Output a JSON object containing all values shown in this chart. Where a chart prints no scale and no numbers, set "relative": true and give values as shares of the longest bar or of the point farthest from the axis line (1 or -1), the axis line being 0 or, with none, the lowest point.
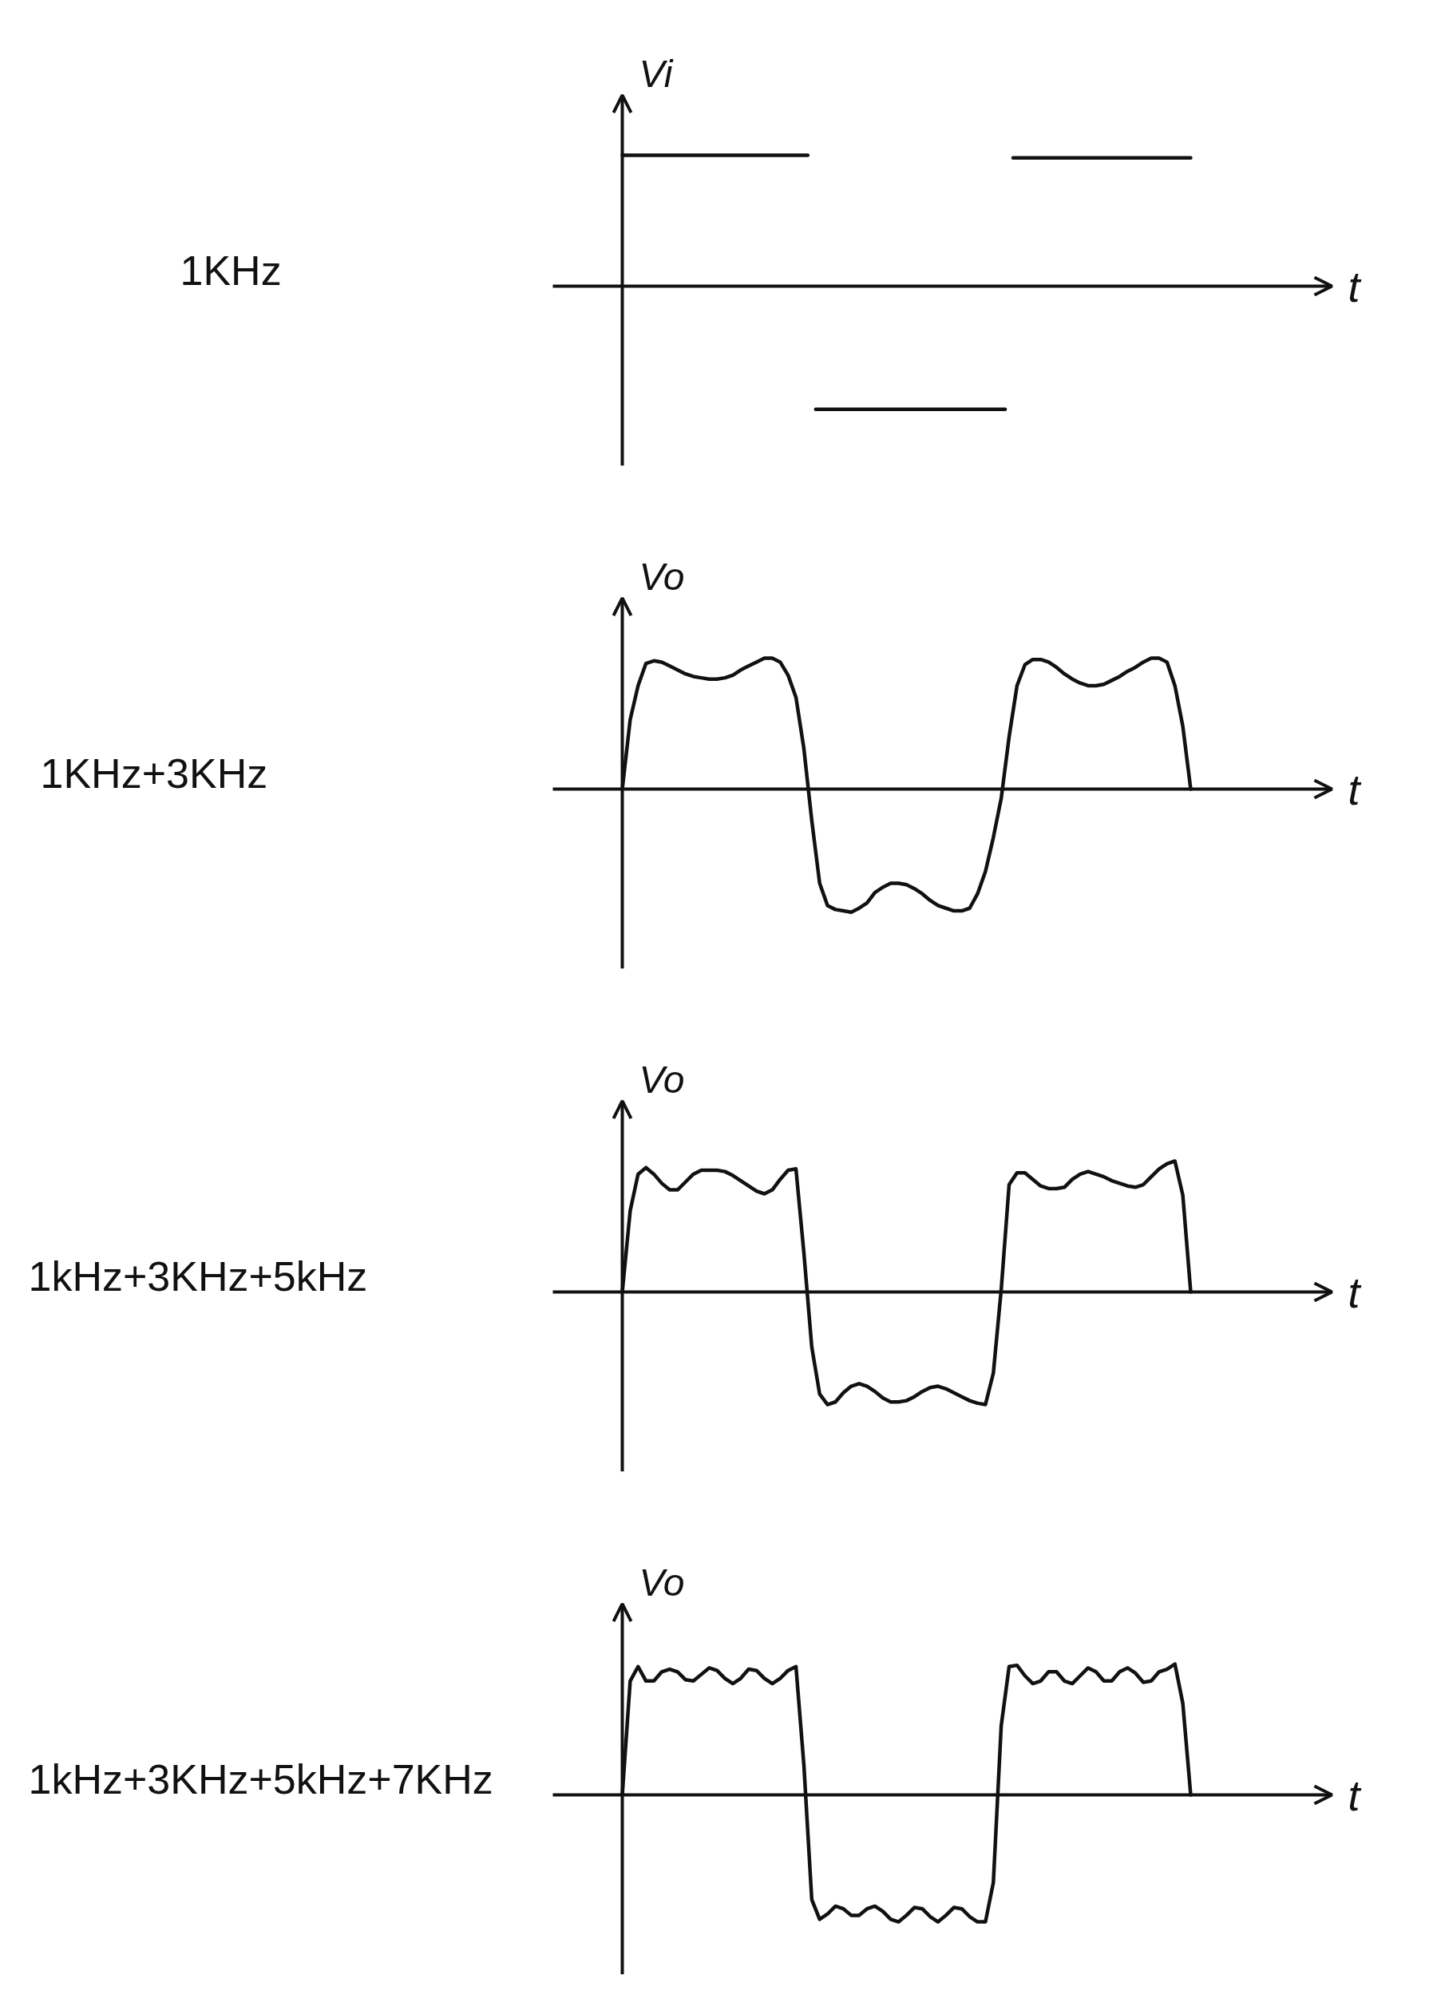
{
  "chart_data": [
    {
      "type": "line",
      "annotations": [
        "1KHz"
      ],
      "xlabel": "t",
      "ylabel": "Vi",
      "relative": true,
      "categories": [
        null,
        null,
        null,
        null,
        null,
        null,
        null,
        null,
        null,
        null,
        null,
        null,
        null,
        null,
        null,
        null,
        null,
        null,
        null,
        null,
        null,
        null,
        null,
        null,
        null,
        null,
        null,
        null,
        null,
        null,
        null,
        null,
        null,
        null,
        null,
        null,
        null,
        null,
        null,
        null,
        null,
        null,
        null,
        null,
        null,
        null,
        null,
        null,
        null,
        null,
        null,
        null,
        null,
        null,
        null,
        null,
        null,
        null,
        null,
        null,
        null,
        null,
        null,
        null,
        null,
        null,
        null,
        null,
        null,
        null,
        null,
        null,
        null,
        null,
        null,
        null,
        null,
        null,
        null,
        null,
        null,
        null,
        null,
        null,
        null,
        null,
        null,
        null,
        null,
        null,
        null,
        null,
        null,
        null,
        null,
        null,
        null,
        null,
        null,
        null,
        null,
        null,
        null,
        null,
        null,
        null,
        null,
        null,
        null,
        null,
        null,
        null,
        null,
        null,
        null,
        null,
        null,
        null,
        null,
        null,
        null,
        null,
        null,
        null,
        null,
        null,
        null,
        null,
        null,
        null,
        null,
        null,
        null,
        null,
        null,
        null,
        null,
        null,
        null,
        null,
        null,
        null,
        null,
        null,
        null
      ],
      "series": [
        {
          "color": "#111111",
          "values": [
            1,
            1,
            1,
            1,
            1,
            1,
            1,
            1,
            1,
            1,
            1,
            1,
            1,
            1,
            1,
            1,
            1,
            1,
            1,
            1,
            1,
            1,
            1,
            1,
            1,
            1,
            1,
            1,
            1,
            1,
            1,
            1,
            1,
            1,
            1,
            1,
            1,
            1,
            1,
            1,
            1,
            1,
            1,
            1,
            1,
            1,
            1,
            1,
            null,
            -0.94,
            -0.94,
            -0.94,
            -0.94,
            -0.94,
            -0.94,
            -0.94,
            -0.94,
            -0.94,
            -0.94,
            -0.94,
            -0.94,
            -0.94,
            -0.94,
            -0.94,
            -0.94,
            -0.94,
            -0.94,
            -0.94,
            -0.94,
            -0.94,
            -0.94,
            -0.94,
            -0.94,
            -0.94,
            -0.94,
            -0.94,
            -0.94,
            -0.94,
            -0.94,
            -0.94,
            -0.94,
            -0.94,
            -0.94,
            -0.94,
            -0.94,
            -0.94,
            -0.94,
            -0.94,
            -0.94,
            -0.94,
            -0.94,
            -0.94,
            -0.94,
            -0.94,
            -0.94,
            -0.94,
            -0.94,
            -0.94,
            null,
            0.98,
            0.98,
            0.98,
            0.98,
            0.98,
            0.98,
            0.98,
            0.98,
            0.98,
            0.98,
            0.98,
            0.98,
            0.98,
            0.98,
            0.98,
            0.98,
            0.98,
            0.98,
            0.98,
            0.98,
            0.98,
            0.98,
            0.98,
            0.98,
            0.98,
            0.98,
            0.98,
            0.98,
            0.98,
            0.98,
            0.98,
            0.98,
            0.98,
            0.98,
            0.98,
            0.98,
            0.98,
            0.98,
            0.98,
            0.98,
            0.98,
            0.98,
            0.98,
            0.98,
            0.98,
            0.98
          ]
        }
      ]
    },
    {
      "type": "line",
      "annotations": [
        "1KHz+3KHz"
      ],
      "xlabel": "t",
      "ylabel": "Vo",
      "relative": true,
      "categories": [
        null,
        null,
        null,
        null,
        null,
        null,
        null,
        null,
        null,
        null,
        null,
        null,
        null,
        null,
        null,
        null,
        null,
        null,
        null,
        null,
        null,
        null,
        null,
        null,
        null,
        null,
        null,
        null,
        null,
        null,
        null,
        null,
        null,
        null,
        null,
        null,
        null,
        null,
        null,
        null,
        null,
        null,
        null,
        null,
        null,
        null,
        null,
        null,
        null,
        null,
        null,
        null,
        null,
        null,
        null,
        null,
        null,
        null,
        null,
        null,
        null,
        null,
        null,
        null,
        null,
        null,
        null,
        null,
        null,
        null,
        null,
        null,
        null
      ],
      "series": [
        {
          "color": "#111111",
          "values": [
            0,
            0.53,
            0.79,
            0.96,
            0.98,
            0.97,
            0.94,
            0.91,
            0.88,
            0.86,
            0.85,
            0.84,
            0.84,
            0.85,
            0.87,
            0.91,
            0.94,
            0.97,
            1.0,
            1.0,
            0.97,
            0.87,
            0.7,
            0.31,
            -0.24,
            -0.72,
            -0.89,
            -0.92,
            -0.93,
            -0.94,
            -0.91,
            -0.87,
            -0.79,
            -0.75,
            -0.72,
            -0.72,
            -0.73,
            -0.76,
            -0.8,
            -0.85,
            -0.89,
            -0.91,
            -0.93,
            -0.93,
            -0.91,
            -0.8,
            -0.63,
            -0.37,
            -0.07,
            0.4,
            0.79,
            0.95,
            0.99,
            0.99,
            0.97,
            0.93,
            0.88,
            0.84,
            0.81,
            0.79,
            0.79,
            0.8,
            0.83,
            0.86,
            0.9,
            0.93,
            0.97,
            1.0,
            1.0,
            0.97,
            0.79,
            0.48,
            0
          ]
        }
      ]
    },
    {
      "type": "line",
      "annotations": [
        "1kHz+3KHz+5kHz"
      ],
      "xlabel": "t",
      "ylabel": "Vo",
      "relative": true,
      "categories": [
        null,
        null,
        null,
        null,
        null,
        null,
        null,
        null,
        null,
        null,
        null,
        null,
        null,
        null,
        null,
        null,
        null,
        null,
        null,
        null,
        null,
        null,
        null,
        null,
        null,
        null,
        null,
        null,
        null,
        null,
        null,
        null,
        null,
        null,
        null,
        null,
        null,
        null,
        null,
        null,
        null,
        null,
        null,
        null,
        null,
        null,
        null,
        null,
        null,
        null,
        null,
        null,
        null,
        null,
        null,
        null,
        null,
        null,
        null,
        null,
        null,
        null,
        null,
        null,
        null,
        null,
        null,
        null,
        null,
        null,
        null,
        null,
        null
      ],
      "series": [
        {
          "color": "#111111",
          "values": [
            0,
            0.62,
            0.9,
            0.95,
            0.9,
            0.83,
            0.78,
            0.78,
            0.84,
            0.9,
            0.93,
            0.93,
            0.93,
            0.92,
            0.89,
            0.85,
            0.81,
            0.77,
            0.75,
            0.78,
            0.86,
            0.93,
            0.94,
            0.3,
            -0.42,
            -0.78,
            -0.86,
            -0.84,
            -0.77,
            -0.72,
            -0.7,
            -0.72,
            -0.76,
            -0.81,
            -0.84,
            -0.84,
            -0.83,
            -0.8,
            -0.76,
            -0.73,
            -0.72,
            -0.74,
            -0.77,
            -0.8,
            -0.83,
            -0.85,
            -0.86,
            -0.62,
            0.02,
            0.82,
            0.91,
            0.91,
            0.86,
            0.81,
            0.79,
            0.79,
            0.8,
            0.86,
            0.9,
            0.92,
            0.9,
            0.88,
            0.85,
            0.83,
            0.81,
            0.8,
            0.82,
            0.88,
            0.94,
            0.98,
            1.0,
            0.74,
            0
          ]
        }
      ]
    },
    {
      "type": "line",
      "annotations": [
        "1kHz+3KHz+5kHz+7KHz"
      ],
      "xlabel": "t",
      "ylabel": "Vo",
      "relative": true,
      "categories": [
        null,
        null,
        null,
        null,
        null,
        null,
        null,
        null,
        null,
        null,
        null,
        null,
        null,
        null,
        null,
        null,
        null,
        null,
        null,
        null,
        null,
        null,
        null,
        null,
        null,
        null,
        null,
        null,
        null,
        null,
        null,
        null,
        null,
        null,
        null,
        null,
        null,
        null,
        null,
        null,
        null,
        null,
        null,
        null,
        null,
        null,
        null,
        null,
        null,
        null,
        null,
        null,
        null,
        null,
        null,
        null,
        null,
        null,
        null,
        null,
        null,
        null,
        null,
        null,
        null,
        null,
        null,
        null,
        null,
        null,
        null,
        null,
        null
      ],
      "series": [
        {
          "color": "#111111",
          "values": [
            0,
            0.87,
            0.98,
            0.87,
            0.87,
            0.94,
            0.96,
            0.94,
            0.88,
            0.87,
            0.92,
            0.97,
            0.95,
            0.89,
            0.85,
            0.89,
            0.96,
            0.95,
            0.89,
            0.85,
            0.89,
            0.95,
            0.98,
            0.23,
            -0.8,
            -0.95,
            -0.91,
            -0.85,
            -0.87,
            -0.92,
            -0.92,
            -0.87,
            -0.85,
            -0.89,
            -0.95,
            -0.97,
            -0.92,
            -0.86,
            -0.87,
            -0.93,
            -0.97,
            -0.92,
            -0.86,
            -0.87,
            -0.93,
            -0.97,
            -0.97,
            -0.67,
            0.53,
            0.98,
            0.99,
            0.91,
            0.85,
            0.87,
            0.94,
            0.94,
            0.87,
            0.85,
            0.91,
            0.97,
            0.94,
            0.87,
            0.87,
            0.94,
            0.97,
            0.93,
            0.86,
            0.87,
            0.94,
            0.96,
            1.0,
            0.7,
            0
          ]
        }
      ]
    }
  ]
}
